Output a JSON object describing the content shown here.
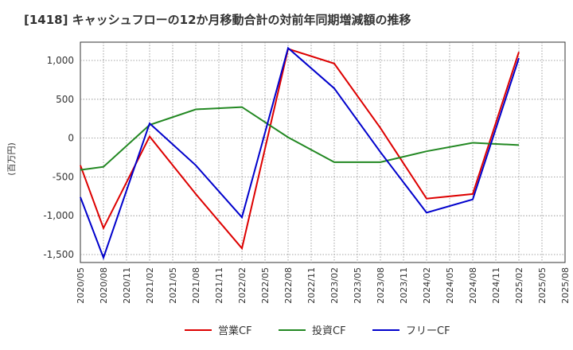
{
  "chart_data": {
    "type": "line",
    "title": "[1418]  キャッシュフローの12か月移動合計の対前年同期増減額の推移",
    "ylabel": "(百万円)",
    "xlabel": "",
    "ylim": [
      -1600,
      1250
    ],
    "yticks": [
      1000,
      500,
      0,
      -500,
      -1000,
      -1500
    ],
    "ytick_labels": [
      "1,000",
      "500",
      "0",
      "-500",
      "-1,000",
      "-1,500"
    ],
    "categories": [
      "2020/05",
      "2020/08",
      "2020/11",
      "2021/02",
      "2021/05",
      "2021/08",
      "2021/11",
      "2022/02",
      "2022/05",
      "2022/08",
      "2022/11",
      "2023/02",
      "2023/05",
      "2023/08",
      "2023/11",
      "2024/02",
      "2024/05",
      "2024/08",
      "2024/11",
      "2025/02",
      "2025/05",
      "2025/08"
    ],
    "grid": true,
    "legend_position": "bottom",
    "series": [
      {
        "name": "営業CF",
        "color": "#dd0000",
        "values": [
          -350,
          -1160,
          null,
          20,
          null,
          -720,
          null,
          -1420,
          null,
          1150,
          null,
          960,
          null,
          130,
          null,
          -780,
          null,
          -720,
          null,
          1110,
          null,
          null
        ]
      },
      {
        "name": "投資CF",
        "color": "#228822",
        "values": [
          -410,
          -370,
          null,
          170,
          null,
          370,
          null,
          400,
          null,
          10,
          null,
          -310,
          null,
          -310,
          null,
          -170,
          null,
          -60,
          null,
          -90,
          null,
          null
        ]
      },
      {
        "name": "フリーCF",
        "color": "#0000cc",
        "values": [
          -760,
          -1540,
          null,
          190,
          null,
          -350,
          null,
          -1020,
          null,
          1160,
          null,
          640,
          null,
          -180,
          null,
          -960,
          null,
          -790,
          null,
          1030,
          null,
          null
        ]
      }
    ]
  }
}
